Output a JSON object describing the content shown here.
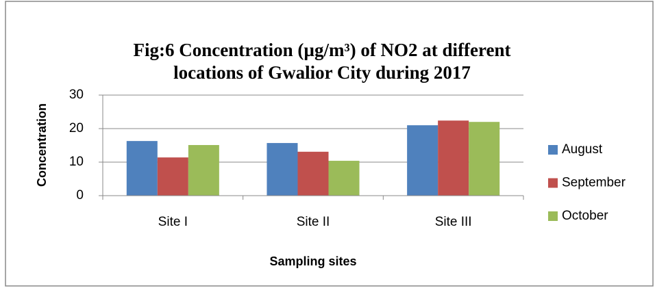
{
  "chart_data": {
    "type": "bar",
    "title": [
      "Fig:6 Concentration (µg/m³) of NO2 at different",
      "locations of Gwalior City during 2017"
    ],
    "x_label": "Sampling sites",
    "y_label": "Concentration",
    "categories": [
      "Site I",
      "Site II",
      "Site III"
    ],
    "series": [
      {
        "name": "August",
        "color": "#4f81bd",
        "values": [
          16.3,
          15.7,
          21.0
        ]
      },
      {
        "name": "September",
        "color": "#c0504d",
        "values": [
          11.4,
          13.1,
          22.4
        ]
      },
      {
        "name": "October",
        "color": "#9bbb59",
        "values": [
          15.1,
          10.4,
          22.0
        ]
      }
    ],
    "ylim": [
      0,
      30
    ],
    "yticks": [
      0,
      10,
      20,
      30
    ],
    "grid": true,
    "legend": "right"
  }
}
